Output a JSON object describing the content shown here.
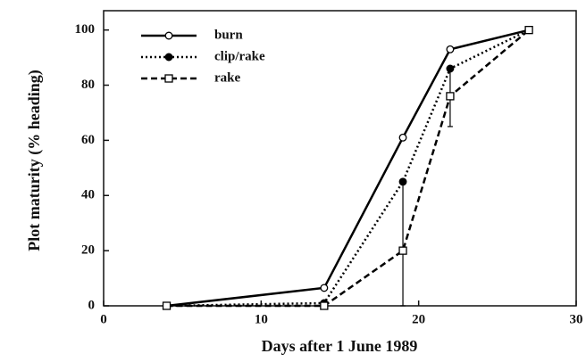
{
  "chart_data": {
    "type": "line",
    "x_label": "Days after 1 June 1989",
    "y_label": "Plot maturity (% heading)",
    "xlim": [
      0,
      30
    ],
    "xticks": [
      0,
      10,
      20,
      30
    ],
    "ylim": [
      0,
      107
    ],
    "yticks": [
      0,
      20,
      40,
      60,
      80,
      100
    ],
    "legend": "upper left",
    "series": [
      {
        "name": "burn",
        "color": "#000000",
        "dash": "solid",
        "marker": "open-circle",
        "x": [
          4,
          14,
          19,
          22,
          27
        ],
        "values": [
          0,
          6.5,
          61,
          93,
          100
        ]
      },
      {
        "name": "clip/rake",
        "color": "#000000",
        "dash": "dotted",
        "marker": "filled-circle",
        "x": [
          4,
          14,
          19,
          22,
          27
        ],
        "values": [
          0,
          1,
          45,
          86,
          100
        ],
        "errors": [
          null,
          null,
          45,
          10,
          null
        ]
      },
      {
        "name": "rake",
        "color": "#000000",
        "dash": "dashed",
        "marker": "open-square",
        "x": [
          4,
          14,
          19,
          22,
          27
        ],
        "values": [
          0,
          0,
          20,
          76,
          100
        ],
        "errors": [
          null,
          null,
          null,
          11,
          null
        ]
      }
    ]
  }
}
